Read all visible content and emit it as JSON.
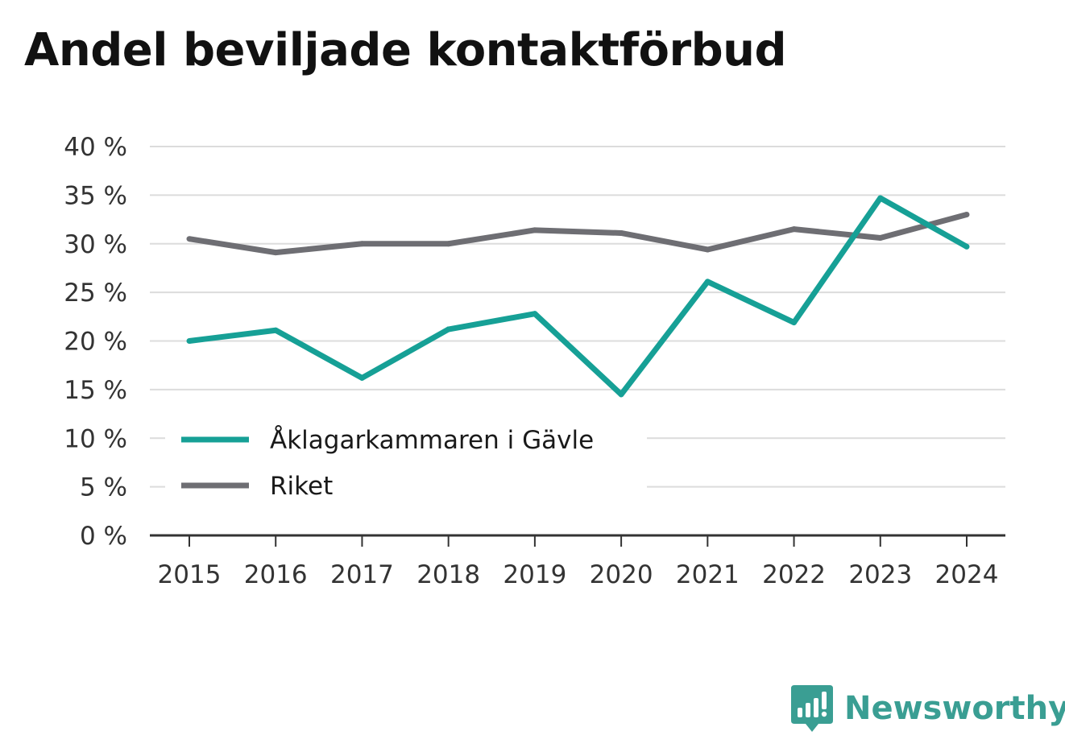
{
  "chart_data": {
    "type": "line",
    "title": "Andel beviljade kontaktförbud",
    "categories": [
      "2015",
      "2016",
      "2017",
      "2018",
      "2019",
      "2020",
      "2021",
      "2022",
      "2023",
      "2024"
    ],
    "series": [
      {
        "name": "Åklagarkammaren i Gävle",
        "color": "#16a096",
        "values": [
          20.0,
          21.1,
          16.2,
          21.2,
          22.8,
          14.5,
          26.1,
          21.9,
          34.7,
          29.7
        ]
      },
      {
        "name": "Riket",
        "color": "#6e6e73",
        "values": [
          30.5,
          29.1,
          30.0,
          30.0,
          31.4,
          31.1,
          29.4,
          31.5,
          30.6,
          33.0
        ]
      }
    ],
    "yticks": [
      "0 %",
      "5 %",
      "10 %",
      "15 %",
      "20 %",
      "25 %",
      "30 %",
      "35 %",
      "40 %"
    ],
    "ylim": [
      0,
      40
    ],
    "grid": true,
    "legend_position": "bottom-left"
  },
  "brand": {
    "name": "Newsworthy",
    "color": "#3a9e93"
  }
}
